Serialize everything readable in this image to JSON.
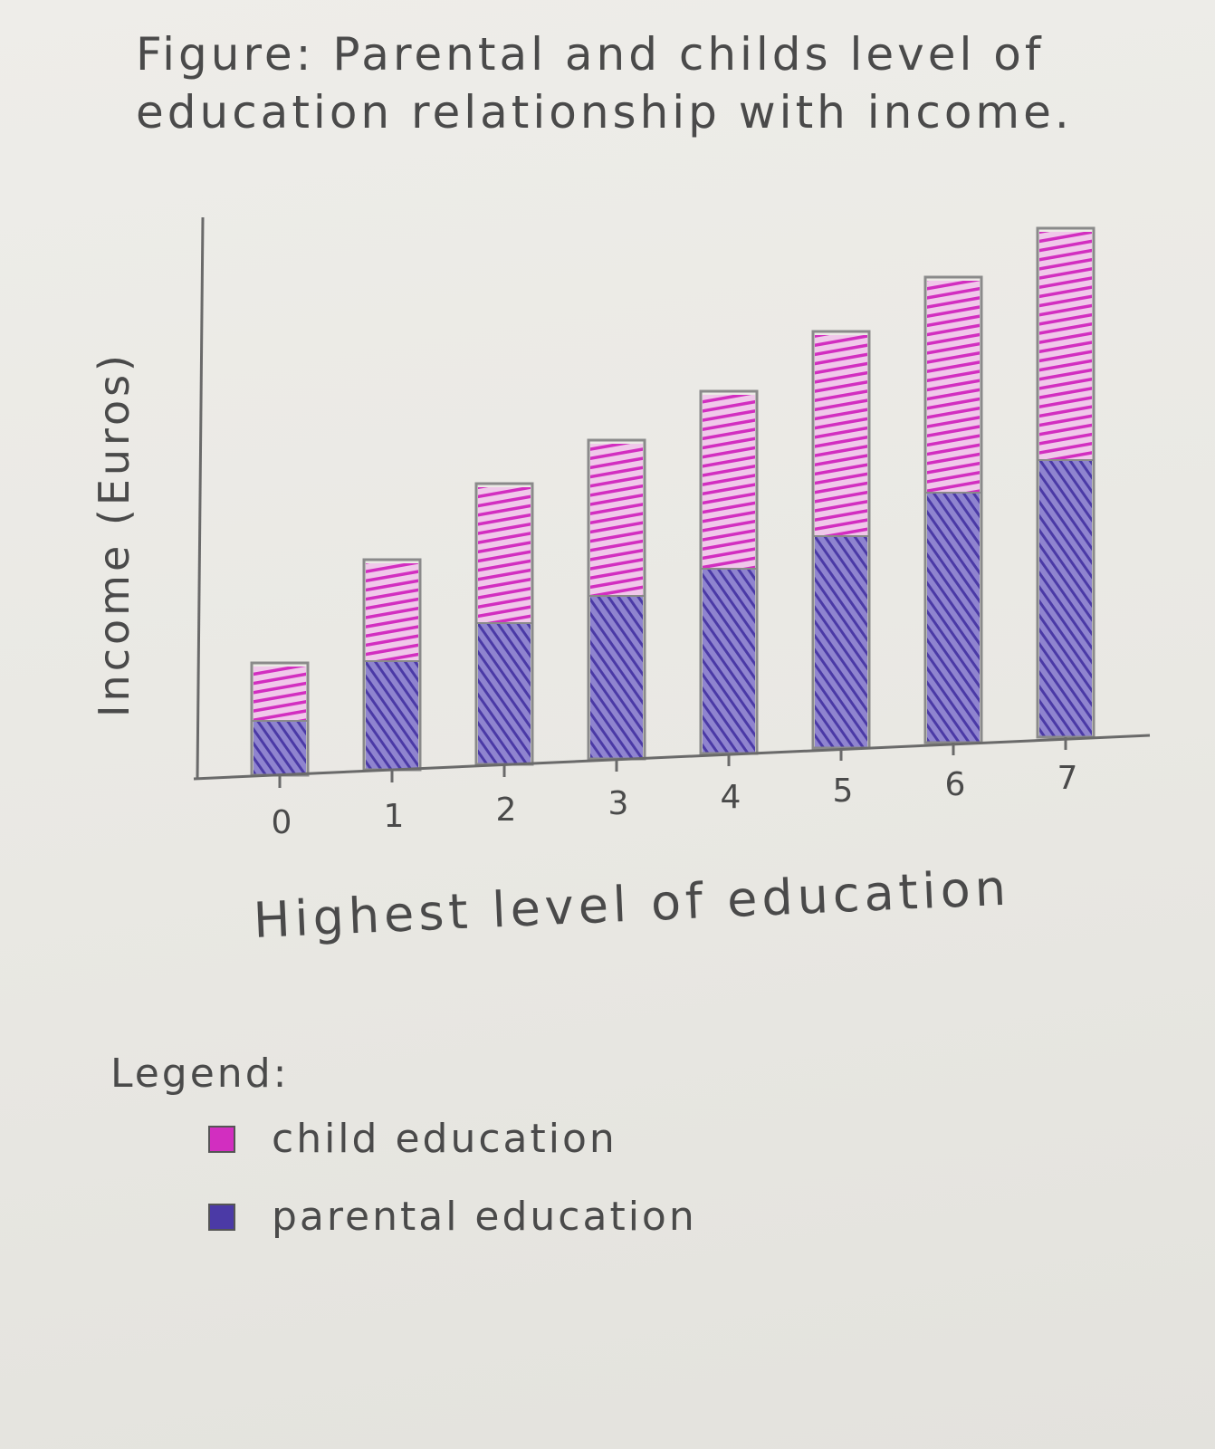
{
  "title": "Figure: Parental and childs level of education relationship with income.",
  "colors": {
    "child": "#d22ec0",
    "parental": "#4b3aa6",
    "outline": "#8a8a8a",
    "axis": "#6a6a6a"
  },
  "chart_data": {
    "type": "bar",
    "stacked": true,
    "title": "Figure: Parental and childs level of education relationship with income.",
    "xlabel": "Highest level of education",
    "ylabel": "Income (Euros)",
    "categories": [
      "0",
      "1",
      "2",
      "3",
      "4",
      "5",
      "6",
      "7"
    ],
    "series": [
      {
        "name": "parental education",
        "values": [
          1.0,
          2.0,
          2.6,
          3.0,
          3.4,
          3.9,
          4.6,
          5.1
        ]
      },
      {
        "name": "child education",
        "values": [
          1.0,
          1.8,
          2.5,
          2.8,
          3.2,
          3.7,
          3.9,
          4.2
        ]
      }
    ],
    "ylim": [
      0,
      10
    ],
    "grid": false,
    "legend_position": "bottom-left"
  },
  "legend": {
    "title": "Legend:",
    "items": [
      {
        "label": "child education",
        "color": "#d22ec0"
      },
      {
        "label": "parental education",
        "color": "#4b3aa6"
      }
    ]
  }
}
